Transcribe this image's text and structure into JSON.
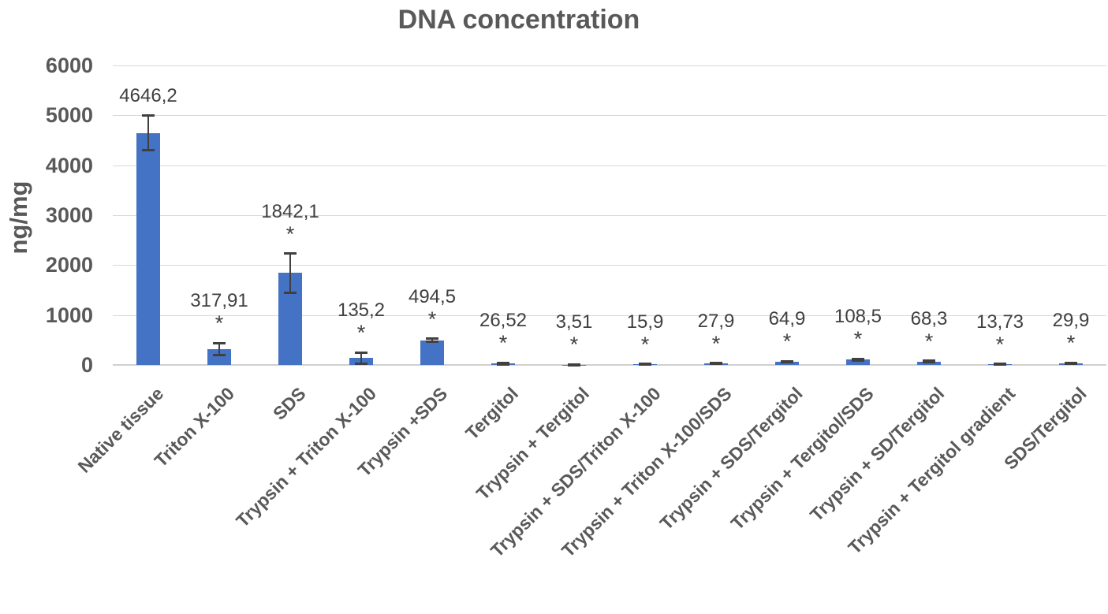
{
  "chart_data": {
    "type": "bar",
    "title": "DNA concentration",
    "ylabel": "ng/mg",
    "xlabel": "",
    "ylim": [
      0,
      6000
    ],
    "ytick_interval": 1000,
    "ytick_labels": [
      "6000",
      "5000",
      "4000",
      "3000",
      "2000",
      "1000",
      "0"
    ],
    "grid": true,
    "legend": "none",
    "bar_color": "#4472C4",
    "error_bar_color": "#404040",
    "categories": [
      "Native tissue",
      "Triton X-100",
      "SDS",
      "Trypsin + Triton X-100",
      "Trypsin +SDS",
      "Tergitol",
      "Trypsin + Tergitol",
      "Trypsin + SDS/Triton X-100",
      "Trypsin + Triton X-100/SDS",
      "Trypsin + SDS/Tergitol",
      "Trypsin + Tergitol/SDS",
      "Trypsin + SD/Tergitol",
      "Trypsin + Tergitol gradient",
      "SDS/Tergitol"
    ],
    "values": [
      4646.2,
      317.91,
      1842.1,
      135.2,
      494.5,
      26.52,
      3.51,
      15.9,
      27.9,
      64.9,
      108.5,
      68.3,
      13.73,
      29.9
    ],
    "value_labels": [
      "4646,2",
      "317,91",
      "1842,1",
      "135,2",
      "494,5",
      "26,52",
      "3,51",
      "15,9",
      "27,9",
      "64,9",
      "108,5",
      "68,3",
      "13,73",
      "29,9"
    ],
    "errors_estimated": [
      350,
      120,
      390,
      115,
      30,
      15,
      5,
      8,
      10,
      12,
      15,
      12,
      6,
      10
    ],
    "significance_marker": "*",
    "significant": [
      false,
      true,
      true,
      true,
      true,
      true,
      true,
      true,
      true,
      true,
      true,
      true,
      true,
      true
    ]
  }
}
